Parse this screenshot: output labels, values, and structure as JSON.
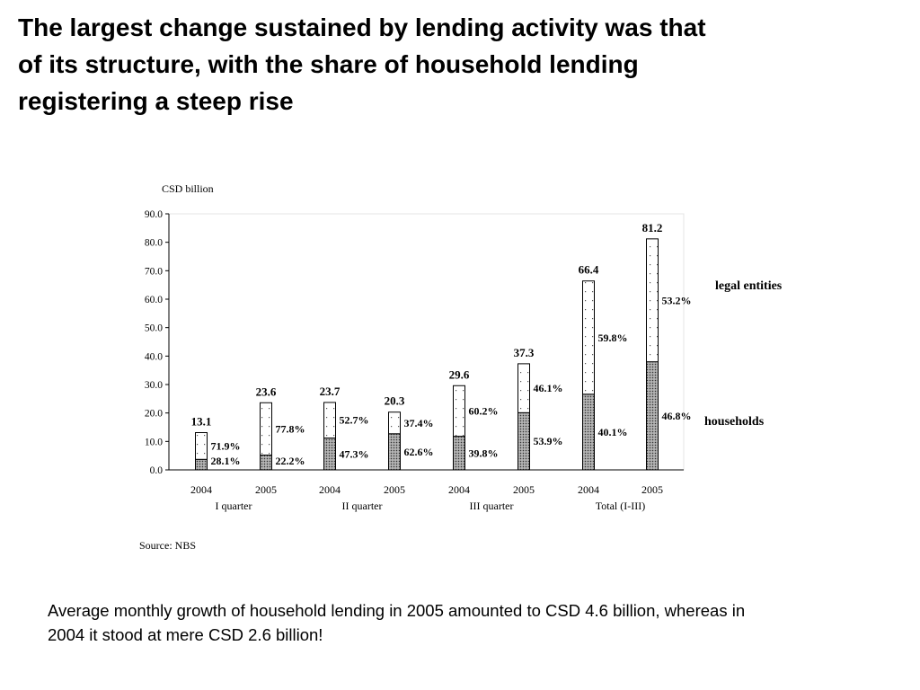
{
  "title_lines": [
    "The largest change sustained by lending activity was that",
    "of its structure, with the share of household lending",
    "registering a steep rise"
  ],
  "footer_lines": [
    "Average monthly growth of household lending in 2005 amounted to CSD 4.6 billion, whereas in",
    "2004 it stood at mere CSD 2.6 billion!"
  ],
  "chart_data": {
    "type": "bar",
    "stacked": true,
    "ylabel": "CSD billion",
    "ylim": [
      0,
      90
    ],
    "yticks": [
      "0.0",
      "10.0",
      "20.0",
      "30.0",
      "40.0",
      "50.0",
      "60.0",
      "70.0",
      "80.0",
      "90.0"
    ],
    "grid": false,
    "categories": [
      "2004",
      "2005",
      "2004",
      "2005",
      "2004",
      "2005",
      "2004",
      "2005"
    ],
    "groups": [
      "I  quarter",
      "II quarter",
      "III quarter",
      "Total (I-III)"
    ],
    "totals": [
      13.1,
      23.6,
      23.7,
      20.3,
      29.6,
      37.3,
      66.4,
      81.2
    ],
    "total_labels": [
      "13.1",
      "23.6",
      "23.7",
      "20.3",
      "29.6",
      "37.3",
      "66.4",
      "81.2"
    ],
    "series": [
      {
        "name": "households",
        "color": "#777777",
        "pattern": "dense-dots",
        "share_labels": [
          "28.1%",
          "22.2%",
          "47.3%",
          "62.6%",
          "39.8%",
          "53.9%",
          "40.1%",
          "46.8%"
        ],
        "values": [
          3.7,
          5.2,
          11.2,
          12.7,
          11.8,
          20.1,
          26.6,
          38.0
        ]
      },
      {
        "name": "legal entities",
        "color": "#ffffff",
        "pattern": "sparse-dots",
        "share_labels": [
          "71.9%",
          "77.8%",
          "52.7%",
          "37.4%",
          "60.2%",
          "46.1%",
          "59.8%",
          "53.2%"
        ],
        "values": [
          9.4,
          18.4,
          12.5,
          7.6,
          17.8,
          17.2,
          39.8,
          43.2
        ]
      }
    ],
    "source": "Source: NBS"
  }
}
